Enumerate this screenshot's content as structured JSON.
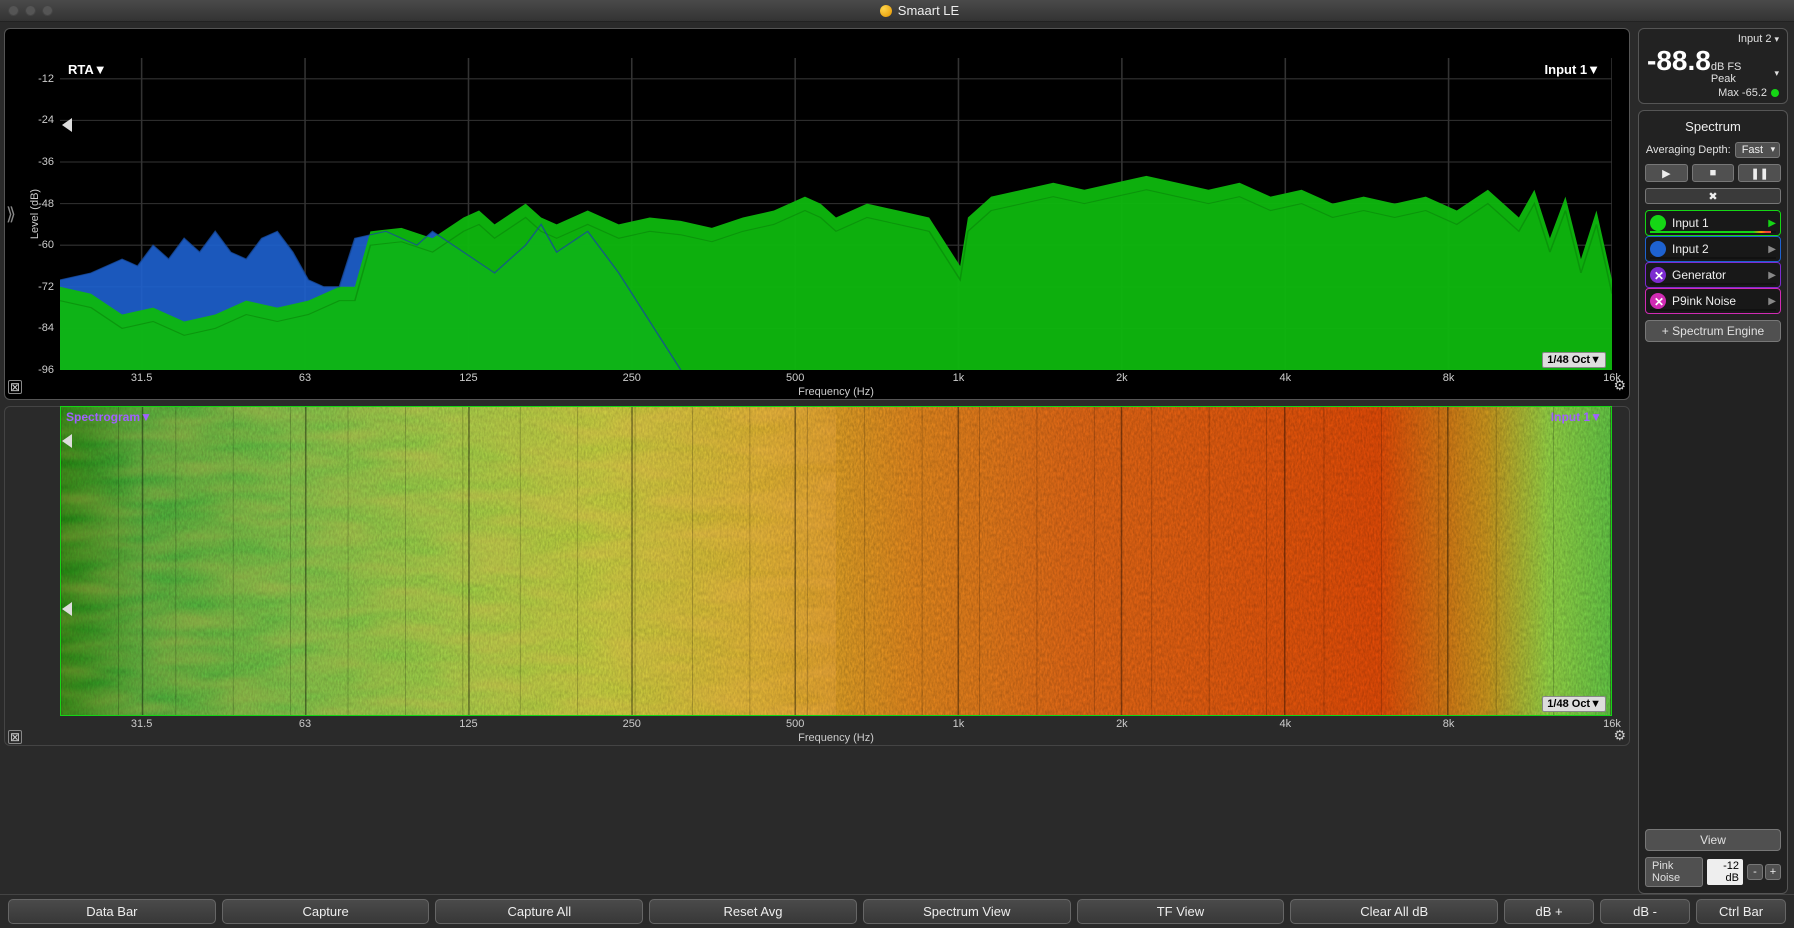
{
  "titlebar": {
    "title": "Smaart LE"
  },
  "rta": {
    "title_left": "RTA▼",
    "title_right": "Input 1▼",
    "oct_label": "1/48 Oct▼",
    "y_label": "Level (dB)",
    "x_label": "Frequency (Hz)",
    "y_ticks": [
      "-12",
      "-24",
      "-36",
      "-48",
      "-60",
      "-72",
      "-84",
      "-96"
    ],
    "y_values": [
      -12,
      -24,
      -36,
      -48,
      -60,
      -72,
      -84,
      -96
    ],
    "x_ticks": [
      "31.5",
      "63",
      "125",
      "250",
      "500",
      "1k",
      "2k",
      "4k",
      "8k",
      "16k"
    ],
    "x_tick_pos": [
      0.0526,
      0.1579,
      0.2632,
      0.3684,
      0.4737,
      0.5789,
      0.6842,
      0.7895,
      0.8947,
      1.0
    ],
    "ylim": [
      -96,
      -6
    ],
    "grid_color": "#333333",
    "background_color": "#000000",
    "series": {
      "green_fill": "#0eb80e",
      "green_stroke": "#0a8a0a",
      "blue_fill": "#1e62d0",
      "blue_stroke": "#174a9c"
    },
    "green_points": [
      [
        0.0,
        -72
      ],
      [
        0.02,
        -74
      ],
      [
        0.04,
        -80
      ],
      [
        0.06,
        -78
      ],
      [
        0.08,
        -82
      ],
      [
        0.1,
        -80
      ],
      [
        0.12,
        -76
      ],
      [
        0.14,
        -78
      ],
      [
        0.16,
        -76
      ],
      [
        0.18,
        -72
      ],
      [
        0.19,
        -72
      ],
      [
        0.2,
        -56
      ],
      [
        0.22,
        -55
      ],
      [
        0.24,
        -58
      ],
      [
        0.26,
        -52
      ],
      [
        0.27,
        -50
      ],
      [
        0.28,
        -54
      ],
      [
        0.3,
        -48
      ],
      [
        0.31,
        -52
      ],
      [
        0.32,
        -54
      ],
      [
        0.34,
        -50
      ],
      [
        0.36,
        -54
      ],
      [
        0.38,
        -52
      ],
      [
        0.4,
        -53
      ],
      [
        0.42,
        -55
      ],
      [
        0.44,
        -52
      ],
      [
        0.46,
        -50
      ],
      [
        0.48,
        -46
      ],
      [
        0.49,
        -48
      ],
      [
        0.5,
        -52
      ],
      [
        0.52,
        -48
      ],
      [
        0.54,
        -50
      ],
      [
        0.56,
        -52
      ],
      [
        0.58,
        -66
      ],
      [
        0.585,
        -52
      ],
      [
        0.6,
        -46
      ],
      [
        0.62,
        -44
      ],
      [
        0.64,
        -42
      ],
      [
        0.66,
        -44
      ],
      [
        0.68,
        -42
      ],
      [
        0.7,
        -40
      ],
      [
        0.72,
        -42
      ],
      [
        0.74,
        -44
      ],
      [
        0.76,
        -42
      ],
      [
        0.78,
        -46
      ],
      [
        0.8,
        -44
      ],
      [
        0.82,
        -48
      ],
      [
        0.84,
        -46
      ],
      [
        0.86,
        -48
      ],
      [
        0.88,
        -46
      ],
      [
        0.9,
        -50
      ],
      [
        0.92,
        -44
      ],
      [
        0.94,
        -52
      ],
      [
        0.95,
        -44
      ],
      [
        0.96,
        -58
      ],
      [
        0.97,
        -46
      ],
      [
        0.98,
        -64
      ],
      [
        0.99,
        -50
      ],
      [
        1.0,
        -70
      ]
    ],
    "blue_points": [
      [
        0.0,
        -70
      ],
      [
        0.02,
        -68
      ],
      [
        0.04,
        -64
      ],
      [
        0.05,
        -66
      ],
      [
        0.06,
        -60
      ],
      [
        0.07,
        -64
      ],
      [
        0.08,
        -58
      ],
      [
        0.09,
        -62
      ],
      [
        0.1,
        -56
      ],
      [
        0.11,
        -62
      ],
      [
        0.12,
        -64
      ],
      [
        0.13,
        -58
      ],
      [
        0.14,
        -56
      ],
      [
        0.15,
        -62
      ],
      [
        0.16,
        -70
      ],
      [
        0.17,
        -72
      ],
      [
        0.18,
        -72
      ],
      [
        0.19,
        -58
      ],
      [
        0.21,
        -56
      ],
      [
        0.23,
        -60
      ],
      [
        0.24,
        -56
      ],
      [
        0.26,
        -62
      ],
      [
        0.28,
        -68
      ],
      [
        0.3,
        -60
      ],
      [
        0.31,
        -54
      ],
      [
        0.32,
        -62
      ],
      [
        0.34,
        -56
      ],
      [
        0.36,
        -68
      ],
      [
        0.4,
        -96
      ]
    ]
  },
  "spectrogram": {
    "title_left": "Spectrogram▼",
    "title_right": "Input 1▼",
    "oct_label": "1/48 Oct▼",
    "x_label": "Frequency (Hz)",
    "x_ticks": [
      "31.5",
      "63",
      "125",
      "250",
      "500",
      "1k",
      "2k",
      "4k",
      "8k",
      "16k"
    ],
    "x_tick_pos": [
      0.0526,
      0.1579,
      0.2632,
      0.3684,
      0.4737,
      0.5789,
      0.6842,
      0.7895,
      0.8947,
      1.0
    ],
    "border_color": "#15d615",
    "colormap_stops": [
      [
        0.0,
        "#0a8a0a"
      ],
      [
        0.05,
        "#3ab83a"
      ],
      [
        0.15,
        "#6ad24a"
      ],
      [
        0.25,
        "#9de04a"
      ],
      [
        0.35,
        "#c8e040"
      ],
      [
        0.45,
        "#e8c030"
      ],
      [
        0.55,
        "#f09020"
      ],
      [
        0.65,
        "#f07018"
      ],
      [
        0.75,
        "#f06010"
      ],
      [
        0.85,
        "#f05008"
      ],
      [
        0.92,
        "#d8a020"
      ],
      [
        0.96,
        "#9de04a"
      ],
      [
        1.0,
        "#6ad24a"
      ]
    ]
  },
  "meter": {
    "input_select": "Input 2",
    "value": "-88.8",
    "peak_label": "dB FS Peak",
    "max_label": "Max -65.2"
  },
  "side": {
    "title": "Spectrum",
    "averaging_label": "Averaging Depth:",
    "averaging_value": "Fast",
    "channels": [
      {
        "label": "Input 1",
        "color": "#15d615",
        "class": "active"
      },
      {
        "label": "Input 2",
        "color": "#1e62d0",
        "class": "blue"
      },
      {
        "label": "Generator",
        "color": "#7c2bd0",
        "class": "purple",
        "x": true
      },
      {
        "label": "P9ink Noise",
        "color": "#d02bb4",
        "class": "magenta",
        "x": true
      }
    ],
    "add_engine_label": "+ Spectrum Engine",
    "view_label": "View",
    "noise_label": "Pink Noise",
    "noise_value": "-12 dB"
  },
  "bottom_buttons": [
    "Data Bar",
    "Capture",
    "Capture All",
    "Reset Avg",
    "Spectrum View",
    "TF View",
    "Clear All dB",
    "dB +",
    "dB -",
    "Ctrl Bar"
  ]
}
